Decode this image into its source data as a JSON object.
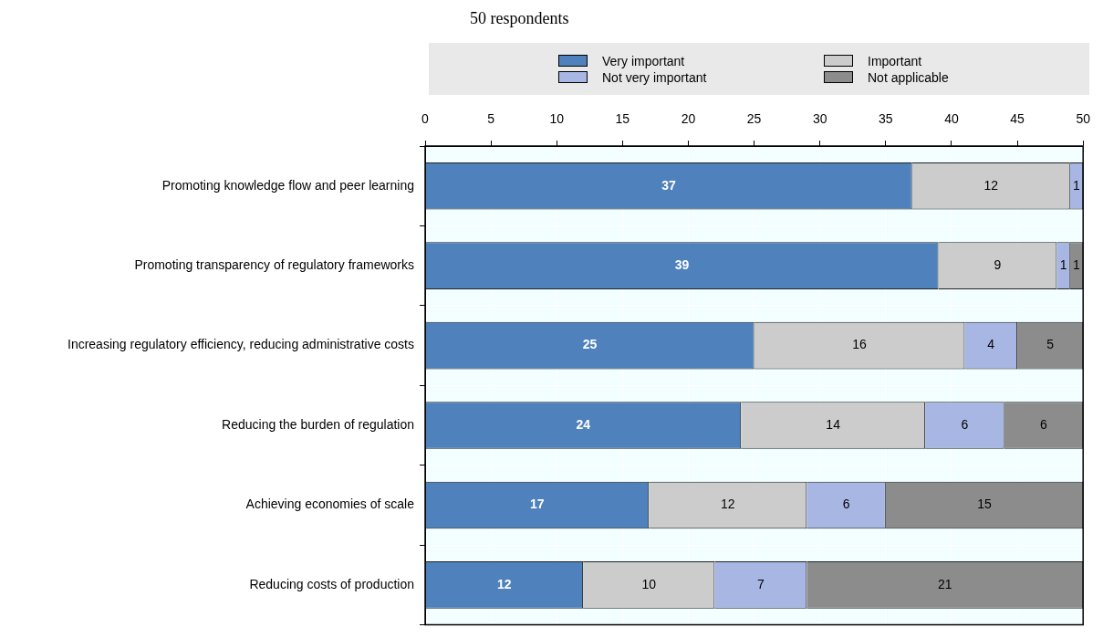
{
  "chart_data": {
    "type": "bar",
    "orientation": "horizontal",
    "stacked": true,
    "title": "50 respondents",
    "categories": [
      "Promoting knowledge flow and peer learning",
      "Promoting transparency of regulatory frameworks",
      "Increasing regulatory efficiency, reducing administrative costs",
      "Reducing the burden of regulation",
      "Achieving economies of scale",
      "Reducing costs of production"
    ],
    "series": [
      {
        "name": "Very important",
        "color": "#4f81bd",
        "values": [
          37,
          39,
          25,
          24,
          17,
          12
        ]
      },
      {
        "name": "Important",
        "color": "#cccccc",
        "values": [
          12,
          9,
          16,
          14,
          12,
          10
        ]
      },
      {
        "name": "Not very important",
        "color": "#a7b6e3",
        "values": [
          1,
          1,
          4,
          6,
          6,
          7
        ]
      },
      {
        "name": "Not applicable",
        "color": "#8c8c8c",
        "values": [
          null,
          1,
          5,
          6,
          15,
          21
        ]
      }
    ],
    "xlim": [
      0,
      50
    ],
    "xticks": [
      0,
      5,
      10,
      15,
      20,
      25,
      30,
      35,
      40,
      45,
      50
    ],
    "grid": true,
    "legend": "top",
    "data_labels": true
  }
}
